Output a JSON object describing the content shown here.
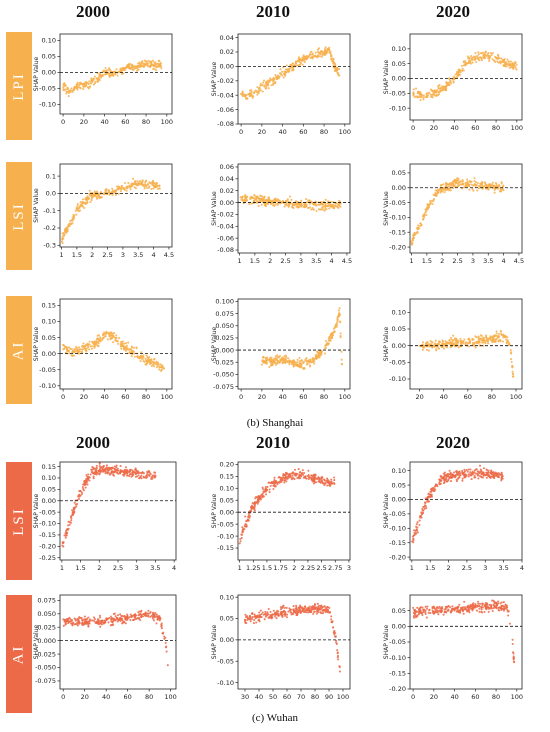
{
  "colors": {
    "shanghai": "#f7b04e",
    "wuhan": "#ec6a48"
  },
  "headers": {
    "top": [
      "2000",
      "2010",
      "2020"
    ],
    "bottom": [
      "2000",
      "2010",
      "2020"
    ]
  },
  "captions": {
    "shanghai": "(b) Shanghai",
    "wuhan": "(c) Wuhan"
  },
  "row_labels": [
    "LPI",
    "LSI",
    "AI",
    "LSI",
    "AI"
  ],
  "chart_data": [
    {
      "type": "scatter",
      "city": "Shanghai",
      "metric": "LPI",
      "year": "2000",
      "ylabel": "SHAP Value",
      "xlim": [
        -3,
        105
      ],
      "ylim": [
        -0.13,
        0.12
      ],
      "xticks": [
        0,
        20,
        40,
        60,
        80,
        100
      ],
      "yticks": [
        0.1,
        0.05,
        0.0,
        -0.05,
        -0.1
      ],
      "ytick_labels": [
        "0.10",
        "0.05",
        "0.00",
        "-0.05",
        "-0.10"
      ],
      "x": [
        0,
        5,
        10,
        20,
        30,
        40,
        50,
        60,
        70,
        80,
        95
      ],
      "y": [
        -0.04,
        -0.06,
        -0.05,
        -0.04,
        -0.03,
        0.0,
        -0.005,
        0.015,
        0.02,
        0.03,
        0.02
      ],
      "baseline": 0
    },
    {
      "type": "scatter",
      "city": "Shanghai",
      "metric": "LPI",
      "year": "2010",
      "ylabel": "SHAP Value",
      "xlim": [
        -3,
        105
      ],
      "ylim": [
        -0.08,
        0.045
      ],
      "xticks": [
        0,
        20,
        40,
        60,
        80,
        100
      ],
      "yticks": [
        0.04,
        0.02,
        0.0,
        -0.02,
        -0.04,
        -0.06,
        -0.08
      ],
      "ytick_labels": [
        "0.04",
        "0.02",
        "0.00",
        "-0.02",
        "-0.04",
        "-0.06",
        "-0.08"
      ],
      "x": [
        0,
        10,
        20,
        30,
        40,
        50,
        60,
        70,
        80,
        85,
        90,
        95
      ],
      "y": [
        -0.04,
        -0.04,
        -0.03,
        -0.02,
        -0.01,
        0.0,
        0.01,
        0.015,
        0.02,
        0.025,
        0.0,
        -0.01
      ],
      "baseline": 0
    },
    {
      "type": "scatter",
      "city": "Shanghai",
      "metric": "LPI",
      "year": "2020",
      "ylabel": "SHAP Value",
      "xlim": [
        -3,
        105
      ],
      "ylim": [
        -0.14,
        0.15
      ],
      "xticks": [
        0,
        20,
        40,
        60,
        80,
        100
      ],
      "yticks": [
        0.1,
        0.05,
        0.0,
        -0.05,
        -0.1
      ],
      "ytick_labels": [
        "0.10",
        "0.05",
        "0.00",
        "-0.05",
        "-0.10"
      ],
      "x": [
        0,
        10,
        20,
        30,
        40,
        50,
        60,
        70,
        80,
        90,
        100
      ],
      "y": [
        -0.05,
        -0.06,
        -0.05,
        -0.03,
        0.0,
        0.05,
        0.07,
        0.08,
        0.07,
        0.05,
        0.04
      ],
      "baseline": 0
    },
    {
      "type": "scatter",
      "city": "Shanghai",
      "metric": "LSI",
      "year": "2000",
      "ylabel": "SHAP Value",
      "xlim": [
        0.95,
        4.6
      ],
      "ylim": [
        -0.31,
        0.17
      ],
      "xticks": [
        1.0,
        1.5,
        2.0,
        2.5,
        3.0,
        3.5,
        4.0,
        4.5
      ],
      "yticks": [
        0.1,
        0.0,
        -0.1,
        -0.2,
        -0.3
      ],
      "ytick_labels": [
        "0.1",
        "0.0",
        "-0.1",
        "-0.2",
        "-0.3"
      ],
      "x": [
        1.0,
        1.2,
        1.5,
        1.8,
        2.0,
        2.5,
        3.0,
        3.5,
        4.0,
        4.2
      ],
      "y": [
        -0.27,
        -0.2,
        -0.1,
        -0.04,
        -0.01,
        0.0,
        0.03,
        0.06,
        0.05,
        0.04
      ],
      "baseline": 0
    },
    {
      "type": "scatter",
      "city": "Shanghai",
      "metric": "LSI",
      "year": "2010",
      "ylabel": "SHAP Value",
      "xlim": [
        0.95,
        4.6
      ],
      "ylim": [
        -0.085,
        0.065
      ],
      "xticks": [
        1.0,
        1.5,
        2.0,
        2.5,
        3.0,
        3.5,
        4.0,
        4.5
      ],
      "yticks": [
        0.06,
        0.04,
        0.02,
        0.0,
        -0.02,
        -0.04,
        -0.06,
        -0.08
      ],
      "ytick_labels": [
        "0.06",
        "0.04",
        "0.02",
        "0.00",
        "-0.02",
        "-0.04",
        "-0.06",
        "-0.08"
      ],
      "x": [
        1.0,
        1.5,
        2.0,
        2.5,
        3.0,
        3.5,
        4.0,
        4.3
      ],
      "y": [
        0.005,
        0.005,
        0.003,
        0.0,
        -0.003,
        -0.005,
        -0.005,
        -0.003
      ],
      "baseline": 0
    },
    {
      "type": "scatter",
      "city": "Shanghai",
      "metric": "LSI",
      "year": "2020",
      "ylabel": "SHAP Value",
      "xlim": [
        0.95,
        4.6
      ],
      "ylim": [
        -0.22,
        0.08
      ],
      "xticks": [
        1.0,
        1.5,
        2.0,
        2.5,
        3.0,
        3.5,
        4.0,
        4.5
      ],
      "yticks": [
        0.05,
        0.0,
        -0.05,
        -0.1,
        -0.15,
        -0.2
      ],
      "ytick_labels": [
        "0.05",
        "0.00",
        "-0.05",
        "-0.10",
        "-0.15",
        "-0.20"
      ],
      "x": [
        1.0,
        1.3,
        1.6,
        2.0,
        2.5,
        3.0,
        3.5,
        4.0
      ],
      "y": [
        -0.18,
        -0.12,
        -0.05,
        0.0,
        0.015,
        0.01,
        0.005,
        0.0
      ],
      "baseline": 0
    },
    {
      "type": "scatter",
      "city": "Shanghai",
      "metric": "AI",
      "year": "2000",
      "ylabel": "SHAP Value",
      "xlim": [
        -3,
        105
      ],
      "ylim": [
        -0.11,
        0.17
      ],
      "xticks": [
        0,
        20,
        40,
        60,
        80,
        100
      ],
      "yticks": [
        0.15,
        0.1,
        0.05,
        0.0,
        -0.05,
        -0.1
      ],
      "ytick_labels": [
        "0.15",
        "0.10",
        "0.05",
        "0.00",
        "-0.05",
        "-0.10"
      ],
      "x": [
        0,
        10,
        20,
        30,
        40,
        50,
        60,
        70,
        80,
        90,
        98
      ],
      "y": [
        0.02,
        0.0,
        0.02,
        0.03,
        0.06,
        0.05,
        0.02,
        0.0,
        -0.02,
        -0.03,
        -0.05
      ],
      "baseline": 0
    },
    {
      "type": "scatter",
      "city": "Shanghai",
      "metric": "AI",
      "year": "2010",
      "ylabel": "SHAP Value",
      "xlim": [
        -3,
        105
      ],
      "ylim": [
        -0.08,
        0.105
      ],
      "xticks": [
        0,
        20,
        40,
        60,
        80,
        100
      ],
      "yticks": [
        0.1,
        0.075,
        0.05,
        0.025,
        0.0,
        -0.025,
        -0.05,
        -0.075
      ],
      "ytick_labels": [
        "0.100",
        "0.075",
        "0.050",
        "0.025",
        "0.000",
        "-0.025",
        "-0.050",
        "-0.075"
      ],
      "x": [
        20,
        30,
        40,
        50,
        60,
        70,
        80,
        90,
        95,
        98
      ],
      "y": [
        -0.02,
        -0.025,
        -0.02,
        -0.025,
        -0.03,
        -0.02,
        0.0,
        0.04,
        0.08,
        -0.06
      ],
      "baseline": 0
    },
    {
      "type": "scatter",
      "city": "Shanghai",
      "metric": "AI",
      "year": "2020",
      "ylabel": "SHAP Value",
      "xlim": [
        12,
        105
      ],
      "ylim": [
        -0.13,
        0.14
      ],
      "xticks": [
        20,
        40,
        60,
        80,
        100
      ],
      "yticks": [
        0.1,
        0.05,
        0.0,
        -0.05,
        -0.1
      ],
      "ytick_labels": [
        "0.10",
        "0.05",
        "0.00",
        "-0.05",
        "-0.10"
      ],
      "x": [
        20,
        30,
        40,
        50,
        60,
        70,
        80,
        90,
        95,
        98
      ],
      "y": [
        0.0,
        0.0,
        0.005,
        0.01,
        0.01,
        0.015,
        0.02,
        0.03,
        0.0,
        -0.1
      ],
      "baseline": 0
    },
    {
      "type": "scatter",
      "city": "Wuhan",
      "metric": "LSI",
      "year": "2000",
      "ylabel": "SHAP Value",
      "xlim": [
        0.95,
        4.05
      ],
      "ylim": [
        -0.26,
        0.17
      ],
      "xticks": [
        1.0,
        1.5,
        2.0,
        2.5,
        3.0,
        3.5,
        4.0
      ],
      "yticks": [
        0.15,
        0.1,
        0.05,
        0.0,
        -0.05,
        -0.1,
        -0.15,
        -0.2,
        -0.25
      ],
      "ytick_labels": [
        "0.15",
        "0.10",
        "0.05",
        "0.00",
        "-0.05",
        "-0.10",
        "-0.15",
        "-0.20",
        "-0.25"
      ],
      "x": [
        1.0,
        1.2,
        1.4,
        1.6,
        1.8,
        2.0,
        2.5,
        3.0,
        3.5
      ],
      "y": [
        -0.2,
        -0.1,
        0.0,
        0.07,
        0.12,
        0.14,
        0.13,
        0.12,
        0.11
      ],
      "baseline": 0
    },
    {
      "type": "scatter",
      "city": "Wuhan",
      "metric": "LSI",
      "year": "2010",
      "ylabel": "SHAP Value",
      "xlim": [
        0.97,
        3.02
      ],
      "ylim": [
        -0.2,
        0.21
      ],
      "xticks": [
        1.0,
        1.25,
        1.5,
        1.75,
        2.0,
        2.25,
        2.5,
        2.75,
        3.0
      ],
      "yticks": [
        0.2,
        0.15,
        0.1,
        0.05,
        0.0,
        -0.05,
        -0.1,
        -0.15
      ],
      "ytick_labels": [
        "0.20",
        "0.15",
        "0.10",
        "0.05",
        "0.00",
        "-0.05",
        "-0.10",
        "-0.15"
      ],
      "x": [
        1.0,
        1.1,
        1.25,
        1.5,
        1.75,
        2.0,
        2.25,
        2.5,
        2.75
      ],
      "y": [
        -0.12,
        -0.05,
        0.03,
        0.1,
        0.14,
        0.16,
        0.15,
        0.13,
        0.12
      ],
      "baseline": 0
    },
    {
      "type": "scatter",
      "city": "Wuhan",
      "metric": "LSI",
      "year": "2020",
      "ylabel": "SHAP Value",
      "xlim": [
        0.95,
        4.0
      ],
      "ylim": [
        -0.21,
        0.13
      ],
      "xticks": [
        1.0,
        1.5,
        2.0,
        2.5,
        3.0,
        3.5,
        4.0
      ],
      "yticks": [
        0.1,
        0.05,
        0.0,
        -0.05,
        -0.1,
        -0.15,
        -0.2
      ],
      "ytick_labels": [
        "0.10",
        "0.05",
        "0.00",
        "-0.05",
        "-0.10",
        "-0.15",
        "-0.20"
      ],
      "x": [
        1.0,
        1.2,
        1.4,
        1.6,
        1.8,
        2.0,
        2.5,
        3.0,
        3.5
      ],
      "y": [
        -0.15,
        -0.08,
        -0.01,
        0.04,
        0.07,
        0.08,
        0.09,
        0.09,
        0.08
      ],
      "baseline": 0
    },
    {
      "type": "scatter",
      "city": "Wuhan",
      "metric": "AI",
      "year": "2000",
      "ylabel": "SHAP Value",
      "xlim": [
        -3,
        105
      ],
      "ylim": [
        -0.09,
        0.085
      ],
      "xticks": [
        0,
        20,
        40,
        60,
        80,
        100
      ],
      "yticks": [
        0.075,
        0.05,
        0.025,
        0.0,
        -0.025,
        -0.05,
        -0.075
      ],
      "ytick_labels": [
        "0.075",
        "0.050",
        "0.025",
        "0.000",
        "-0.025",
        "-0.050",
        "-0.075"
      ],
      "x": [
        0,
        20,
        40,
        60,
        80,
        90,
        95,
        98
      ],
      "y": [
        0.035,
        0.035,
        0.038,
        0.042,
        0.05,
        0.04,
        0.0,
        -0.06
      ],
      "baseline": 0
    },
    {
      "type": "scatter",
      "city": "Wuhan",
      "metric": "AI",
      "year": "2010",
      "ylabel": "SHAP Value",
      "xlim": [
        25,
        105
      ],
      "ylim": [
        -0.115,
        0.105
      ],
      "xticks": [
        30,
        40,
        50,
        60,
        70,
        80,
        90,
        100
      ],
      "yticks": [
        0.1,
        0.05,
        0.0,
        -0.05,
        -0.1
      ],
      "ytick_labels": [
        "0.10",
        "0.05",
        "0.00",
        "-0.05",
        "-0.10"
      ],
      "x": [
        30,
        40,
        50,
        60,
        70,
        80,
        90,
        95,
        98
      ],
      "y": [
        0.05,
        0.055,
        0.06,
        0.065,
        0.07,
        0.075,
        0.07,
        0.0,
        -0.08
      ],
      "baseline": 0
    },
    {
      "type": "scatter",
      "city": "Wuhan",
      "metric": "AI",
      "year": "2020",
      "ylabel": "SHAP Value",
      "xlim": [
        -3,
        105
      ],
      "ylim": [
        -0.2,
        0.1
      ],
      "xticks": [
        0,
        20,
        40,
        60,
        80,
        100
      ],
      "yticks": [
        0.05,
        0.0,
        -0.05,
        -0.1,
        -0.15,
        -0.2
      ],
      "ytick_labels": [
        "0.05",
        "0.00",
        "-0.05",
        "-0.10",
        "-0.15",
        "-0.20"
      ],
      "x": [
        0,
        20,
        40,
        60,
        80,
        90,
        95,
        98
      ],
      "y": [
        0.045,
        0.05,
        0.055,
        0.06,
        0.065,
        0.06,
        0.0,
        -0.15
      ],
      "baseline": 0
    }
  ]
}
